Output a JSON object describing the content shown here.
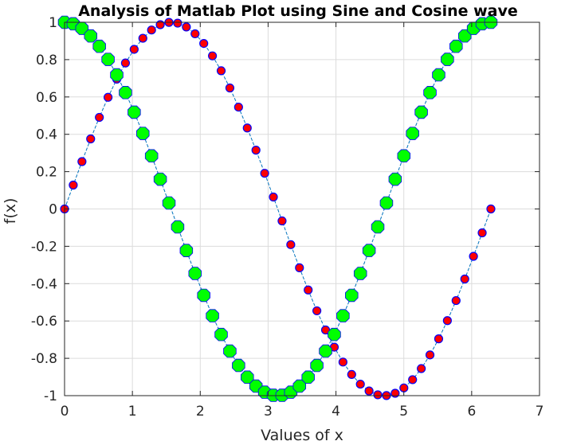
{
  "chart_data": {
    "type": "line",
    "title": "Analysis of Matlab Plot using Sine and Cosine wave",
    "xlabel": "Values of x",
    "ylabel": "f(x)",
    "xlim": [
      0,
      7
    ],
    "ylim": [
      -1,
      1
    ],
    "grid": true,
    "x_ticks": [
      "0",
      "1",
      "2",
      "3",
      "4",
      "5",
      "6",
      "7"
    ],
    "y_ticks": [
      "1",
      "0.8",
      "0.6",
      "0.4",
      "0.2",
      "0",
      "-0.2",
      "-0.4",
      "-0.6",
      "-0.8",
      "-1"
    ],
    "x_range": {
      "start": 0,
      "end": 6.2832,
      "count": 50
    },
    "series": [
      {
        "function": "sin",
        "line_color": "#0072BD",
        "marker_face": "#ff0000",
        "marker_edge": "#0000ff",
        "marker": "circle-small"
      },
      {
        "function": "cos",
        "line_color": "#0072BD",
        "marker_face": "#00ff00",
        "marker_edge": "#0000ff",
        "marker": "octagon-large"
      }
    ]
  }
}
